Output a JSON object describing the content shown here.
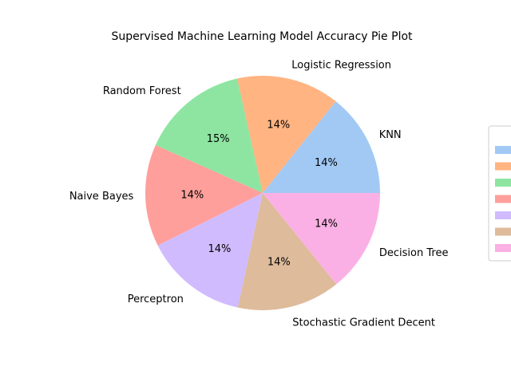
{
  "chart_data": {
    "type": "pie",
    "title": "Supervised Machine Learning Model Accuracy Pie Plot",
    "slices": [
      {
        "label": "KNN",
        "percent_label": "14%",
        "value": 14.3,
        "color": "#a1c9f4"
      },
      {
        "label": "Logistic Regression",
        "percent_label": "14%",
        "value": 14.2,
        "color": "#ffb482"
      },
      {
        "label": "Random Forest",
        "percent_label": "15%",
        "value": 14.8,
        "color": "#8de5a1"
      },
      {
        "label": "Naive Bayes",
        "percent_label": "14%",
        "value": 14.1,
        "color": "#ff9f9b"
      },
      {
        "label": "Perceptron",
        "percent_label": "14%",
        "value": 14.2,
        "color": "#d0bbff"
      },
      {
        "label": "Stochastic Gradient Decent",
        "percent_label": "14%",
        "value": 14.2,
        "color": "#debb9b"
      },
      {
        "label": "Decision Tree",
        "percent_label": "14%",
        "value": 14.2,
        "color": "#fab0e4"
      }
    ],
    "start_angle_deg": 0,
    "direction": "counterclockwise",
    "legend": {
      "placement": "right",
      "entries_text_visible": false
    }
  }
}
